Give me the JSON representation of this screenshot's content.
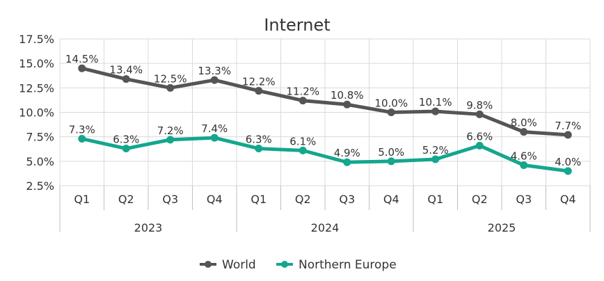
{
  "chart_data": {
    "type": "line",
    "title": "Internet",
    "categories": [
      "Q1",
      "Q2",
      "Q3",
      "Q4",
      "Q1",
      "Q2",
      "Q3",
      "Q4",
      "Q1",
      "Q2",
      "Q3",
      "Q4"
    ],
    "groups": [
      {
        "label": "2023",
        "count": 4
      },
      {
        "label": "2024",
        "count": 4
      },
      {
        "label": "2025",
        "count": 4
      }
    ],
    "y_ticks": [
      "2.5%",
      "5.0%",
      "7.5%",
      "10.0%",
      "12.5%",
      "15.0%",
      "17.5%"
    ],
    "ylim": [
      2.5,
      17.5
    ],
    "grid": true,
    "legend_position": "bottom",
    "series": [
      {
        "name": "World",
        "color": "#555555",
        "values": [
          14.5,
          13.4,
          12.5,
          13.3,
          12.2,
          11.2,
          10.8,
          10.0,
          10.1,
          9.8,
          8.0,
          7.7
        ],
        "labels": [
          "14.5%",
          "13.4%",
          "12.5%",
          "13.3%",
          "12.2%",
          "11.2%",
          "10.8%",
          "10.0%",
          "10.1%",
          "9.8%",
          "8.0%",
          "7.7%"
        ]
      },
      {
        "name": "Northern Europe",
        "color": "#14a68e",
        "values": [
          7.3,
          6.3,
          7.2,
          7.4,
          6.3,
          6.1,
          4.9,
          5.0,
          5.2,
          6.6,
          4.6,
          4.0
        ],
        "labels": [
          "7.3%",
          "6.3%",
          "7.2%",
          "7.4%",
          "6.3%",
          "6.1%",
          "4.9%",
          "5.0%",
          "5.2%",
          "6.6%",
          "4.6%",
          "4.0%"
        ]
      }
    ]
  }
}
